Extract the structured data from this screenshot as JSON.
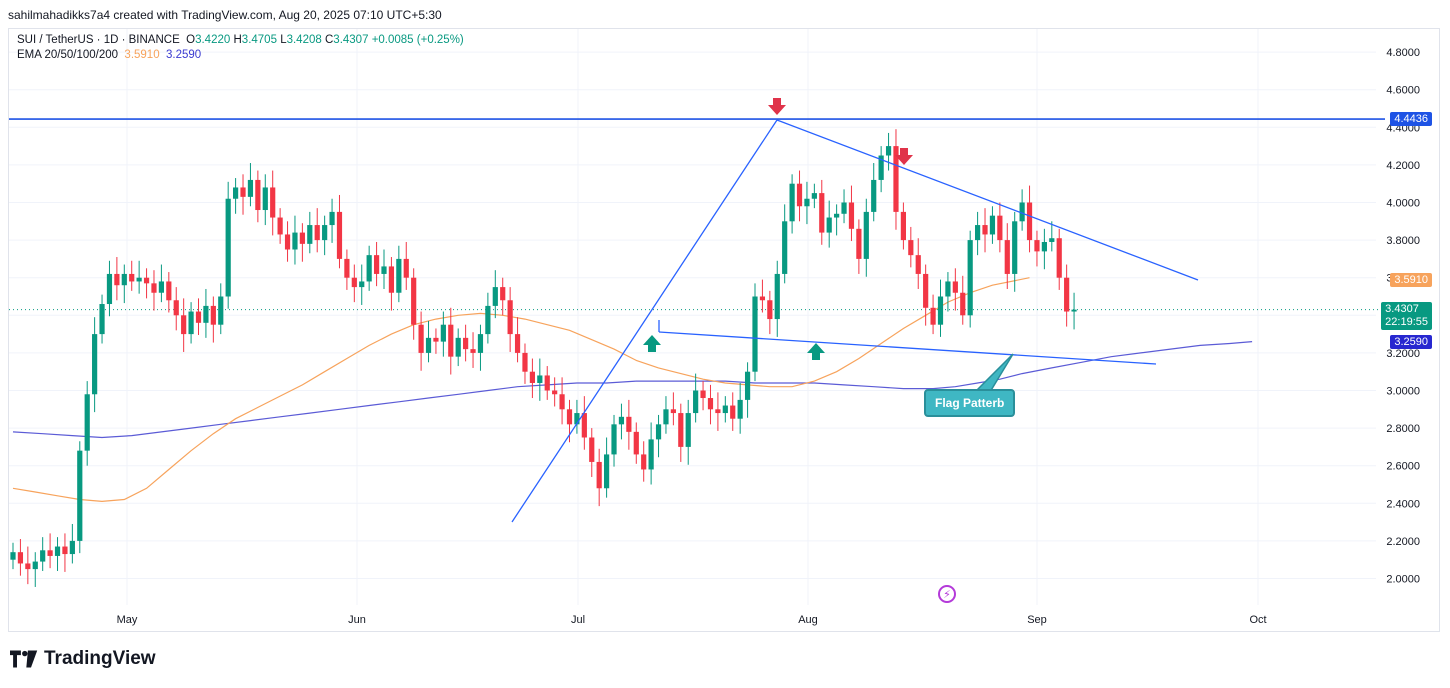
{
  "header": {
    "attribution": "sahilmahadikks7a4 created with TradingView.com, Aug 20, 2025 07:10 UTC+5:30"
  },
  "legend": {
    "symbol": "SUI / TetherUS · 1D · BINANCE",
    "o_label": "O",
    "o_value": "3.4220",
    "h_label": "H",
    "h_value": "3.4705",
    "l_label": "L",
    "l_value": "3.4208",
    "c_label": "C",
    "c_value": "3.4307",
    "change": "+0.0085 (+0.25%)",
    "ema_label": "EMA 20/50/100/200",
    "ema50_value": "3.5910",
    "ema200_value": "3.2590"
  },
  "price_tags": {
    "resistance": "4.4436",
    "ema50": "3.5910",
    "last_price": "3.4307",
    "countdown": "22:19:55",
    "ema200": "3.2590"
  },
  "annotation": {
    "label": "Flag Patterb"
  },
  "footer": {
    "brand": "TradingView"
  },
  "colors": {
    "up": "#089981",
    "down": "#f23645",
    "ema50": "#f7a35c",
    "ema200": "#5b5bd6",
    "trend": "#2962ff",
    "resistance": "#1e53e5",
    "callout": "#3fb7c3"
  },
  "chart_data": {
    "type": "candlestick",
    "instrument": "SUI / TetherUS",
    "timeframe": "1D",
    "exchange": "BINANCE",
    "x_ticks": [
      "May",
      "Jun",
      "Jul",
      "Aug",
      "Sep",
      "Oct"
    ],
    "y_ticks": [
      "2.0000",
      "2.2000",
      "2.4000",
      "2.6000",
      "2.8000",
      "3.0000",
      "3.2000",
      "3.4000",
      "3.6000",
      "3.8000",
      "4.0000",
      "4.2000",
      "4.4000",
      "4.6000",
      "4.8000"
    ],
    "ylim": [
      1.93,
      4.95
    ],
    "closes": [
      2.14,
      2.08,
      2.05,
      2.09,
      2.15,
      2.12,
      2.17,
      2.13,
      2.2,
      2.68,
      2.98,
      3.3,
      3.46,
      3.62,
      3.56,
      3.62,
      3.58,
      3.6,
      3.57,
      3.52,
      3.58,
      3.48,
      3.4,
      3.3,
      3.42,
      3.36,
      3.45,
      3.35,
      3.5,
      4.02,
      4.08,
      4.03,
      4.12,
      3.96,
      4.08,
      3.92,
      3.83,
      3.75,
      3.84,
      3.78,
      3.88,
      3.8,
      3.88,
      3.95,
      3.7,
      3.6,
      3.55,
      3.58,
      3.72,
      3.62,
      3.66,
      3.52,
      3.7,
      3.6,
      3.35,
      3.2,
      3.28,
      3.26,
      3.35,
      3.18,
      3.28,
      3.22,
      3.2,
      3.3,
      3.45,
      3.55,
      3.48,
      3.3,
      3.2,
      3.1,
      3.04,
      3.08,
      3.0,
      2.98,
      2.9,
      2.82,
      2.88,
      2.75,
      2.62,
      2.48,
      2.66,
      2.82,
      2.86,
      2.78,
      2.66,
      2.58,
      2.74,
      2.82,
      2.9,
      2.88,
      2.7,
      2.88,
      3.0,
      2.96,
      2.9,
      2.88,
      2.92,
      2.85,
      2.95,
      3.1,
      3.5,
      3.48,
      3.38,
      3.62,
      3.9,
      4.1,
      3.98,
      4.02,
      4.05,
      3.84,
      3.92,
      3.94,
      4.0,
      3.86,
      3.7,
      3.95,
      4.12,
      4.25,
      4.3,
      3.95,
      3.8,
      3.72,
      3.62,
      3.44,
      3.35,
      3.5,
      3.58,
      3.52,
      3.4,
      3.8,
      3.88,
      3.83,
      3.93,
      3.8,
      3.62,
      3.9,
      4.0,
      3.8,
      3.74,
      3.79,
      3.81,
      3.6,
      3.42,
      3.43
    ],
    "ema50": [
      2.48,
      2.46,
      2.44,
      2.42,
      2.41,
      2.42,
      2.48,
      2.58,
      2.68,
      2.77,
      2.85,
      2.91,
      2.97,
      3.03,
      3.1,
      3.17,
      3.24,
      3.3,
      3.35,
      3.38,
      3.4,
      3.41,
      3.4,
      3.38,
      3.35,
      3.32,
      3.27,
      3.22,
      3.16,
      3.12,
      3.09,
      3.06,
      3.04,
      3.03,
      3.02,
      3.02,
      3.05,
      3.1,
      3.17,
      3.25,
      3.33,
      3.4,
      3.47,
      3.52,
      3.56,
      3.6
    ],
    "ema50_x_days": [
      0,
      3,
      6,
      9,
      12,
      15,
      18,
      21,
      24,
      27,
      30,
      33,
      36,
      39,
      42,
      45,
      48,
      51,
      54,
      57,
      60,
      63,
      66,
      69,
      72,
      75,
      78,
      81,
      84,
      87,
      90,
      93,
      96,
      99,
      102,
      105,
      108,
      111,
      114,
      117,
      120,
      123,
      126,
      129,
      132,
      137
    ],
    "ema200": [
      2.78,
      2.77,
      2.76,
      2.75,
      2.76,
      2.78,
      2.8,
      2.82,
      2.84,
      2.86,
      2.88,
      2.9,
      2.92,
      2.94,
      2.96,
      2.98,
      3.0,
      3.02,
      3.03,
      3.04,
      3.04,
      3.05,
      3.05,
      3.05,
      3.05,
      3.04,
      3.04,
      3.04,
      3.03,
      3.02,
      3.01,
      3.01,
      3.02,
      3.04,
      3.06,
      3.09,
      3.12,
      3.15,
      3.18,
      3.2,
      3.22,
      3.24,
      3.25,
      3.26
    ],
    "ema200_x_days": [
      0,
      4,
      8,
      12,
      16,
      20,
      24,
      28,
      32,
      36,
      40,
      44,
      48,
      52,
      56,
      60,
      64,
      68,
      72,
      76,
      80,
      84,
      88,
      92,
      96,
      100,
      104,
      108,
      112,
      116,
      120,
      124,
      127,
      130,
      133,
      136,
      140,
      144,
      148,
      152,
      156,
      160,
      164,
      167
    ],
    "resistance_level": 4.4436,
    "annotations": [
      "Flag Patterb"
    ]
  }
}
